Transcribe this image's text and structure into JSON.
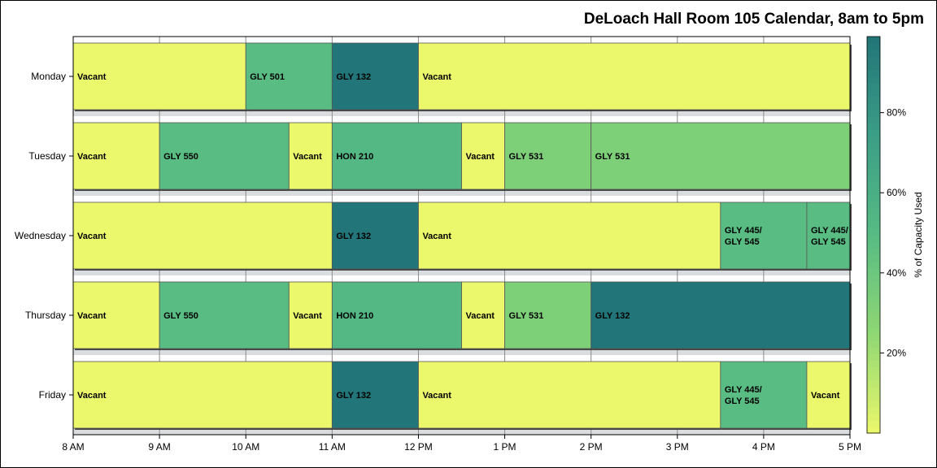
{
  "chart_data": {
    "type": "bar",
    "subtype": "gantt",
    "title": "DeLoach Hall Room 105 Calendar, 8am to 5pm",
    "x_ticks": [
      "8 AM",
      "9 AM",
      "10 AM",
      "11 AM",
      "12 PM",
      "1 PM",
      "2 PM",
      "3 PM",
      "4 PM",
      "5 PM"
    ],
    "xlim": [
      8,
      17
    ],
    "days": [
      "Monday",
      "Tuesday",
      "Wednesday",
      "Thursday",
      "Friday"
    ],
    "colorbar": {
      "label": "% of Capacity Used",
      "ticks": [
        "20%",
        "40%",
        "60%",
        "80%"
      ],
      "tick_values": [
        20,
        40,
        60,
        80
      ],
      "range": [
        0,
        99
      ],
      "colors": [
        "#ecf86b",
        "#8fd873",
        "#56bb84",
        "#3b9e86",
        "#227578"
      ]
    },
    "events": [
      {
        "day": "Monday",
        "start": 8,
        "end": 10,
        "label": "Vacant",
        "pct": 0
      },
      {
        "day": "Monday",
        "start": 10,
        "end": 11,
        "label": "GLY 501",
        "pct": 48
      },
      {
        "day": "Monday",
        "start": 11,
        "end": 12,
        "label": "GLY 132",
        "pct": 99
      },
      {
        "day": "Monday",
        "start": 12,
        "end": 17,
        "label": "Vacant",
        "pct": 0
      },
      {
        "day": "Tuesday",
        "start": 8,
        "end": 9,
        "label": "Vacant",
        "pct": 0
      },
      {
        "day": "Tuesday",
        "start": 9,
        "end": 10.5,
        "label": "GLY 550",
        "pct": 48
      },
      {
        "day": "Tuesday",
        "start": 10.5,
        "end": 11,
        "label": "Vacant",
        "pct": 0
      },
      {
        "day": "Tuesday",
        "start": 11,
        "end": 12.5,
        "label": "HON 210",
        "pct": 52
      },
      {
        "day": "Tuesday",
        "start": 12.5,
        "end": 13,
        "label": "Vacant",
        "pct": 0
      },
      {
        "day": "Tuesday",
        "start": 13,
        "end": 14,
        "label": "GLY 531",
        "pct": 32
      },
      {
        "day": "Tuesday",
        "start": 14,
        "end": 17,
        "label": "GLY 531",
        "pct": 32
      },
      {
        "day": "Wednesday",
        "start": 8,
        "end": 11,
        "label": "Vacant",
        "pct": 0
      },
      {
        "day": "Wednesday",
        "start": 11,
        "end": 12,
        "label": "GLY 132",
        "pct": 99
      },
      {
        "day": "Wednesday",
        "start": 12,
        "end": 15.5,
        "label": "Vacant",
        "pct": 0
      },
      {
        "day": "Wednesday",
        "start": 15.5,
        "end": 16.5,
        "label": "GLY 445/ GLY 545",
        "pct": 48
      },
      {
        "day": "Wednesday",
        "start": 16.5,
        "end": 17,
        "label": "GLY 445/ GLY 545",
        "pct": 48
      },
      {
        "day": "Thursday",
        "start": 8,
        "end": 9,
        "label": "Vacant",
        "pct": 0
      },
      {
        "day": "Thursday",
        "start": 9,
        "end": 10.5,
        "label": "GLY 550",
        "pct": 48
      },
      {
        "day": "Thursday",
        "start": 10.5,
        "end": 11,
        "label": "Vacant",
        "pct": 0
      },
      {
        "day": "Thursday",
        "start": 11,
        "end": 12.5,
        "label": "HON 210",
        "pct": 52
      },
      {
        "day": "Thursday",
        "start": 12.5,
        "end": 13,
        "label": "Vacant",
        "pct": 0
      },
      {
        "day": "Thursday",
        "start": 13,
        "end": 14,
        "label": "GLY 531",
        "pct": 32
      },
      {
        "day": "Thursday",
        "start": 14,
        "end": 17,
        "label": "GLY 132",
        "pct": 99
      },
      {
        "day": "Friday",
        "start": 8,
        "end": 11,
        "label": "Vacant",
        "pct": 0
      },
      {
        "day": "Friday",
        "start": 11,
        "end": 12,
        "label": "GLY 132",
        "pct": 99
      },
      {
        "day": "Friday",
        "start": 12,
        "end": 15.5,
        "label": "Vacant",
        "pct": 0
      },
      {
        "day": "Friday",
        "start": 15.5,
        "end": 16.5,
        "label": "GLY 445/ GLY 545",
        "pct": 48
      },
      {
        "day": "Friday",
        "start": 16.5,
        "end": 17,
        "label": "Vacant",
        "pct": 0
      }
    ]
  }
}
